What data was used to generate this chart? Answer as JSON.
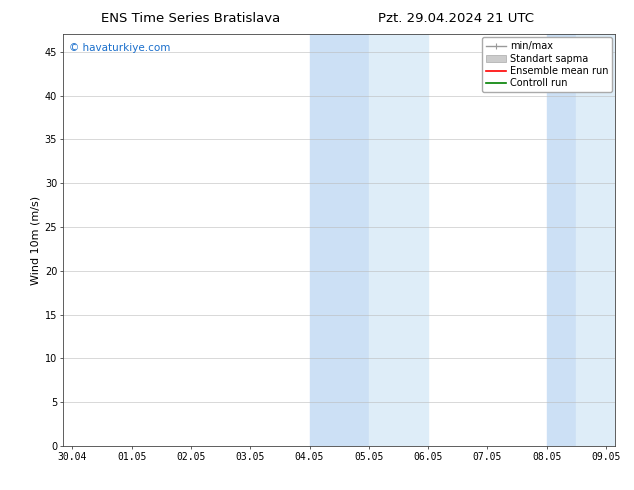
{
  "title_left": "ENS Time Series Bratislava",
  "title_right": "Pzt. 29.04.2024 21 UTC",
  "ylabel": "Wind 10m (m/s)",
  "xtick_labels": [
    "30.04",
    "01.05",
    "02.05",
    "03.05",
    "04.05",
    "05.05",
    "06.05",
    "07.05",
    "08.05",
    "09.05"
  ],
  "ytick_values": [
    0,
    5,
    10,
    15,
    20,
    25,
    30,
    35,
    40,
    45
  ],
  "ylim": [
    0,
    47
  ],
  "shaded_regions": [
    {
      "xstart": 4.0,
      "xend": 5.0,
      "color": "#cce0f5"
    },
    {
      "xstart": 5.0,
      "xend": 6.0,
      "color": "#deedf8"
    },
    {
      "xstart": 8.0,
      "xend": 8.5,
      "color": "#cce0f5"
    },
    {
      "xstart": 8.5,
      "xend": 9.15,
      "color": "#deedf8"
    }
  ],
  "legend_entries": [
    {
      "label": "min/max",
      "type": "minmax",
      "color": "#999999",
      "lw": 1.0
    },
    {
      "label": "Standart sapma",
      "type": "patch",
      "color": "#cccccc",
      "lw": 5
    },
    {
      "label": "Ensemble mean run",
      "type": "line",
      "color": "red",
      "lw": 1.2
    },
    {
      "label": "Controll run",
      "type": "line",
      "color": "green",
      "lw": 1.2
    }
  ],
  "watermark_text": "© havaturkiye.com",
  "watermark_color": "#1a6fcc",
  "background_color": "#ffffff",
  "plot_bg_color": "#ffffff",
  "title_fontsize": 9.5,
  "axis_fontsize": 8,
  "tick_fontsize": 7,
  "legend_fontsize": 7,
  "watermark_fontsize": 7.5
}
